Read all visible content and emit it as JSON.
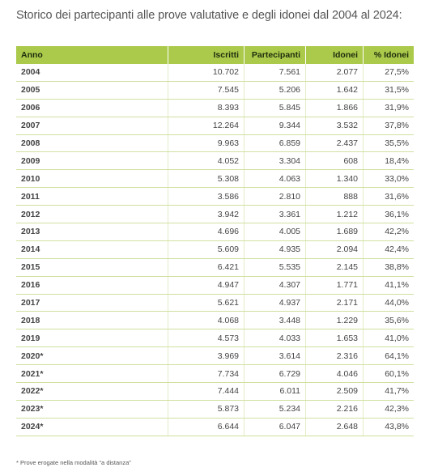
{
  "title": "Storico dei partecipanti alle prove valutative e degli idonei dal 2004 al 2024:",
  "headers": {
    "anno": "Anno",
    "iscritti": "Iscritti",
    "partecipanti": "Partecipanti",
    "idonei": "Idonei",
    "pct_idonei": "% Idonei"
  },
  "rows": [
    {
      "anno": "2004",
      "iscritti": "10.702",
      "partecipanti": "7.561",
      "idonei": "2.077",
      "pct": "27,5%"
    },
    {
      "anno": "2005",
      "iscritti": "7.545",
      "partecipanti": "5.206",
      "idonei": "1.642",
      "pct": "31,5%"
    },
    {
      "anno": "2006",
      "iscritti": "8.393",
      "partecipanti": "5.845",
      "idonei": "1.866",
      "pct": "31,9%"
    },
    {
      "anno": "2007",
      "iscritti": "12.264",
      "partecipanti": "9.344",
      "idonei": "3.532",
      "pct": "37,8%"
    },
    {
      "anno": "2008",
      "iscritti": "9.963",
      "partecipanti": "6.859",
      "idonei": "2.437",
      "pct": "35,5%"
    },
    {
      "anno": "2009",
      "iscritti": "4.052",
      "partecipanti": "3.304",
      "idonei": "608",
      "pct": "18,4%"
    },
    {
      "anno": "2010",
      "iscritti": "5.308",
      "partecipanti": "4.063",
      "idonei": "1.340",
      "pct": "33,0%"
    },
    {
      "anno": "2011",
      "iscritti": "3.586",
      "partecipanti": "2.810",
      "idonei": "888",
      "pct": "31,6%"
    },
    {
      "anno": "2012",
      "iscritti": "3.942",
      "partecipanti": "3.361",
      "idonei": "1.212",
      "pct": "36,1%"
    },
    {
      "anno": "2013",
      "iscritti": "4.696",
      "partecipanti": "4.005",
      "idonei": "1.689",
      "pct": "42,2%"
    },
    {
      "anno": "2014",
      "iscritti": "5.609",
      "partecipanti": "4.935",
      "idonei": "2.094",
      "pct": "42,4%"
    },
    {
      "anno": "2015",
      "iscritti": "6.421",
      "partecipanti": "5.535",
      "idonei": "2.145",
      "pct": "38,8%"
    },
    {
      "anno": "2016",
      "iscritti": "4.947",
      "partecipanti": "4.307",
      "idonei": "1.771",
      "pct": "41,1%"
    },
    {
      "anno": "2017",
      "iscritti": "5.621",
      "partecipanti": "4.937",
      "idonei": "2.171",
      "pct": "44,0%"
    },
    {
      "anno": "2018",
      "iscritti": "4.068",
      "partecipanti": "3.448",
      "idonei": "1.229",
      "pct": "35,6%"
    },
    {
      "anno": "2019",
      "iscritti": "4.573",
      "partecipanti": "4.033",
      "idonei": "1.653",
      "pct": "41,0%"
    },
    {
      "anno": "2020*",
      "iscritti": "3.969",
      "partecipanti": "3.614",
      "idonei": "2.316",
      "pct": "64,1%"
    },
    {
      "anno": "2021*",
      "iscritti": "7.734",
      "partecipanti": "6.729",
      "idonei": "4.046",
      "pct": "60,1%"
    },
    {
      "anno": "2022*",
      "iscritti": "7.444",
      "partecipanti": "6.011",
      "idonei": "2.509",
      "pct": "41,7%"
    },
    {
      "anno": "2023*",
      "iscritti": "5.873",
      "partecipanti": "5.234",
      "idonei": "2.216",
      "pct": "42,3%"
    },
    {
      "anno": "2024*",
      "iscritti": "6.644",
      "partecipanti": "6.047",
      "idonei": "2.648",
      "pct": "43,8%"
    }
  ],
  "footnote": "* Prove erogate nella modalità “a distanza”",
  "colors": {
    "header_bg": "#abc94a",
    "row_border": "#cfe0a0"
  }
}
